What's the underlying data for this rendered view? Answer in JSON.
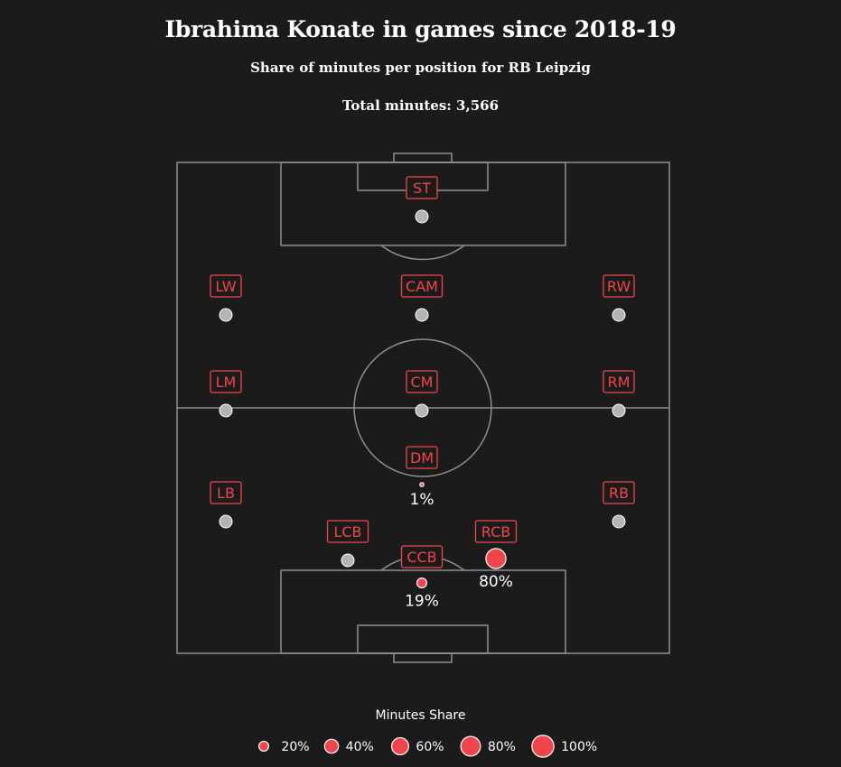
{
  "title": "Ibrahima Konate in games since 2018-19",
  "subtitle": "Share of minutes per position for RB Leipzig",
  "total_label": "Total minutes: 3,566",
  "colors": {
    "background": "#1b1b1b",
    "accent": "#f0464b",
    "empty": "#b4b4b4",
    "pitch_lines": "#8f8f8f"
  },
  "chart_data": {
    "type": "scatter",
    "title": "Ibrahima Konate in games since 2018-19",
    "subtitle": "Share of minutes per position for RB Leipzig",
    "total_minutes": 3566,
    "positions": [
      {
        "label": "ST",
        "share": 0
      },
      {
        "label": "LW",
        "share": 0
      },
      {
        "label": "CAM",
        "share": 0
      },
      {
        "label": "RW",
        "share": 0
      },
      {
        "label": "LM",
        "share": 0
      },
      {
        "label": "CM",
        "share": 0
      },
      {
        "label": "RM",
        "share": 0
      },
      {
        "label": "DM",
        "share": 1,
        "value_label": "1%"
      },
      {
        "label": "LB",
        "share": 0
      },
      {
        "label": "RB",
        "share": 0
      },
      {
        "label": "LCB",
        "share": 0
      },
      {
        "label": "RCB",
        "share": 80,
        "value_label": "80%"
      },
      {
        "label": "CCB",
        "share": 19,
        "value_label": "19%"
      }
    ],
    "legend": {
      "title": "Minutes Share",
      "entries": [
        {
          "label": "20%",
          "value": 20
        },
        {
          "label": "40%",
          "value": 40
        },
        {
          "label": "60%",
          "value": 60
        },
        {
          "label": "80%",
          "value": 80
        },
        {
          "label": "100%",
          "value": 100
        }
      ]
    }
  }
}
